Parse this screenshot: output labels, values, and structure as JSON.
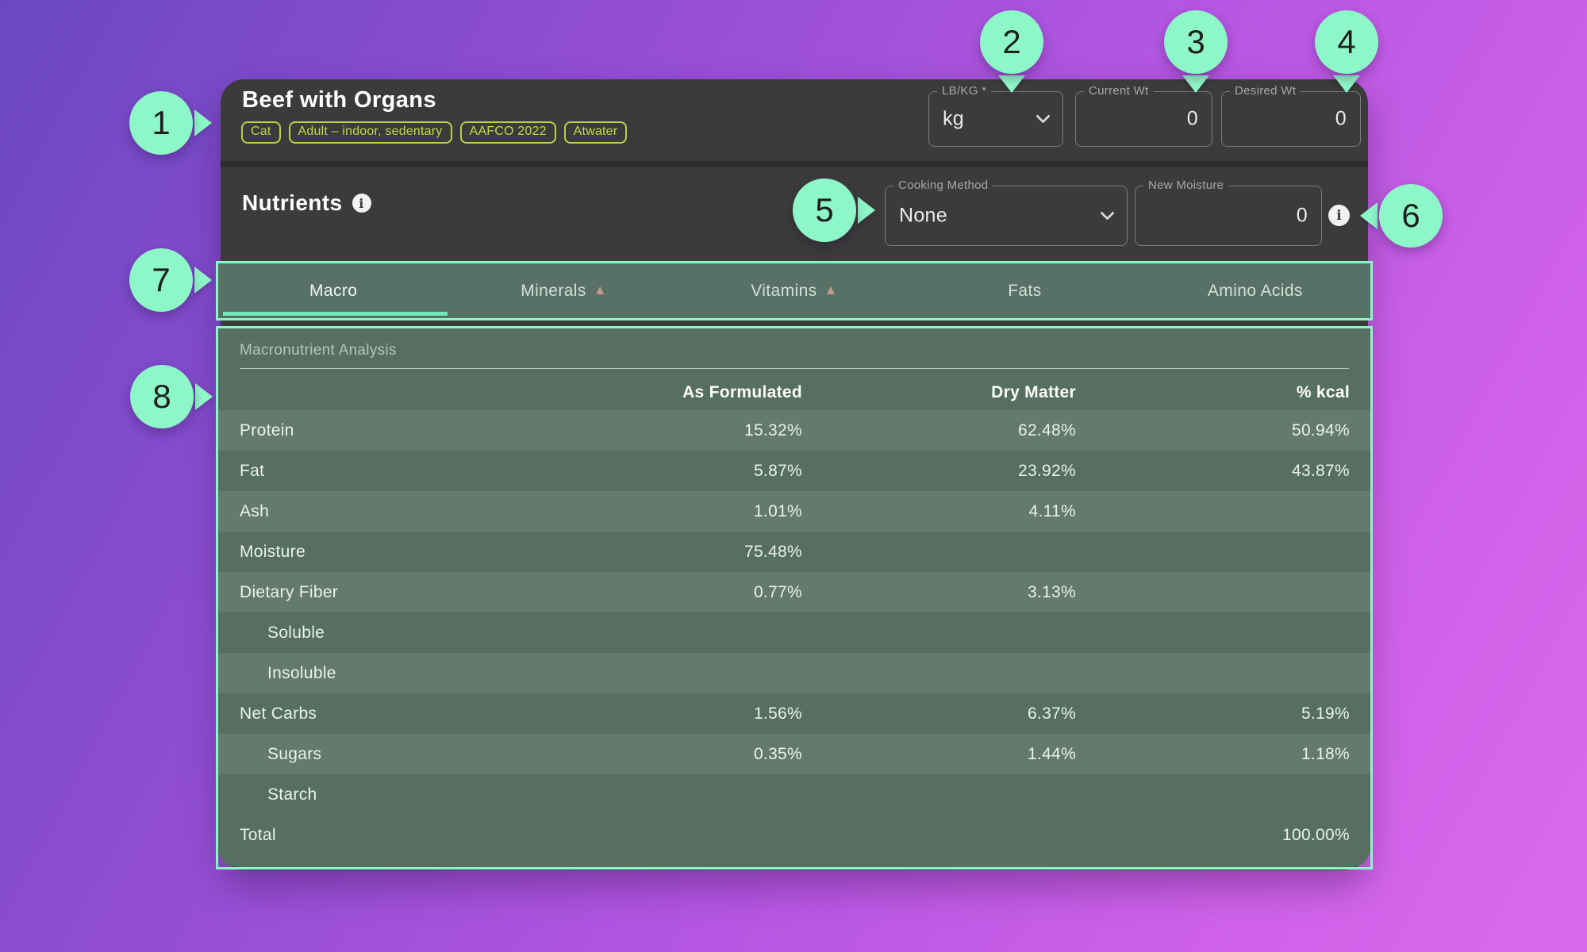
{
  "header": {
    "title": "Beef with Organs",
    "chips": [
      "Cat",
      "Adult – indoor, sedentary",
      "AAFCO 2022",
      "Atwater"
    ],
    "unit_field": {
      "label": "LB/KG *",
      "value": "kg"
    },
    "current_wt_field": {
      "label": "Current Wt",
      "value": "0"
    },
    "desired_wt_field": {
      "label": "Desired Wt",
      "value": "0"
    }
  },
  "nutrients_bar": {
    "title": "Nutrients",
    "cooking_method_field": {
      "label": "Cooking Method",
      "value": "None"
    },
    "new_moisture_field": {
      "label": "New Moisture",
      "value": "0"
    }
  },
  "tabs": [
    {
      "label": "Macro",
      "active": true,
      "warning": false
    },
    {
      "label": "Minerals",
      "active": false,
      "warning": true
    },
    {
      "label": "Vitamins",
      "active": false,
      "warning": true
    },
    {
      "label": "Fats",
      "active": false,
      "warning": false
    },
    {
      "label": "Amino Acids",
      "active": false,
      "warning": false
    }
  ],
  "table": {
    "section_title": "Macronutrient Analysis",
    "columns": [
      "As Formulated",
      "Dry Matter",
      "% kcal"
    ],
    "rows": [
      {
        "label": "Protein",
        "indent": false,
        "values": [
          "15.32%",
          "62.48%",
          "50.94%"
        ]
      },
      {
        "label": "Fat",
        "indent": false,
        "values": [
          "5.87%",
          "23.92%",
          "43.87%"
        ]
      },
      {
        "label": "Ash",
        "indent": false,
        "values": [
          "1.01%",
          "4.11%",
          ""
        ]
      },
      {
        "label": "Moisture",
        "indent": false,
        "values": [
          "75.48%",
          "",
          ""
        ]
      },
      {
        "label": "Dietary Fiber",
        "indent": false,
        "values": [
          "0.77%",
          "3.13%",
          ""
        ]
      },
      {
        "label": "Soluble",
        "indent": true,
        "values": [
          "",
          "",
          ""
        ]
      },
      {
        "label": "Insoluble",
        "indent": true,
        "values": [
          "",
          "",
          ""
        ]
      },
      {
        "label": "Net Carbs",
        "indent": false,
        "values": [
          "1.56%",
          "6.37%",
          "5.19%"
        ]
      },
      {
        "label": "Sugars",
        "indent": true,
        "values": [
          "0.35%",
          "1.44%",
          "1.18%"
        ]
      },
      {
        "label": "Starch",
        "indent": true,
        "values": [
          "",
          "",
          ""
        ]
      },
      {
        "label": "Total",
        "indent": false,
        "values": [
          "",
          "",
          "100.00%"
        ],
        "total": true
      }
    ]
  },
  "icons": {
    "info": "i",
    "warning": "▲"
  },
  "annotations": {
    "callout_numbers": [
      "1",
      "2",
      "3",
      "4",
      "5",
      "6",
      "7",
      "8"
    ]
  },
  "colors": {
    "annotation_mint": "#8ef7c8",
    "chip_yellow_green": "#c7d84d",
    "panel_green": "#566f60",
    "tab_bar_green": "#587166",
    "card_dark": "#3b3b3b",
    "warning_salmon": "#c89889",
    "active_tab_underline": "#70e9b7"
  }
}
